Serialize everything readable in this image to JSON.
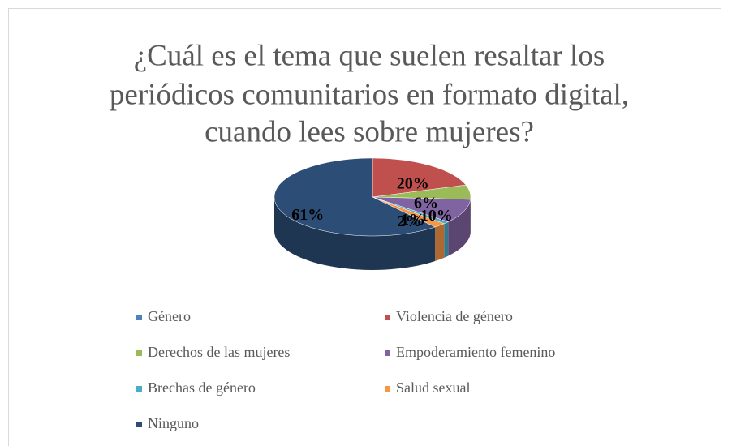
{
  "chart_data": {
    "type": "pie",
    "title": [
      "¿Cuál es el tema que suelen resaltar los",
      "periódicos comunitarios en formato digital,",
      "cuando lees sobre mujeres?"
    ],
    "categories": [
      "Género",
      "Violencia de género",
      "Derechos de las mujeres",
      "Empoderamiento femenino",
      "Brechas de género",
      "Salud sexual",
      "Ninguno"
    ],
    "values": [
      0,
      20,
      6,
      10,
      1,
      2,
      61
    ],
    "value_labels": [
      null,
      "20%",
      "6%",
      "10%",
      "1%",
      "2%",
      "61%"
    ],
    "colors": [
      "#4f81bd",
      "#c0504d",
      "#9bbb59",
      "#8064a2",
      "#4bacc6",
      "#f79646",
      "#2c4d75"
    ],
    "legend": "bottom"
  }
}
